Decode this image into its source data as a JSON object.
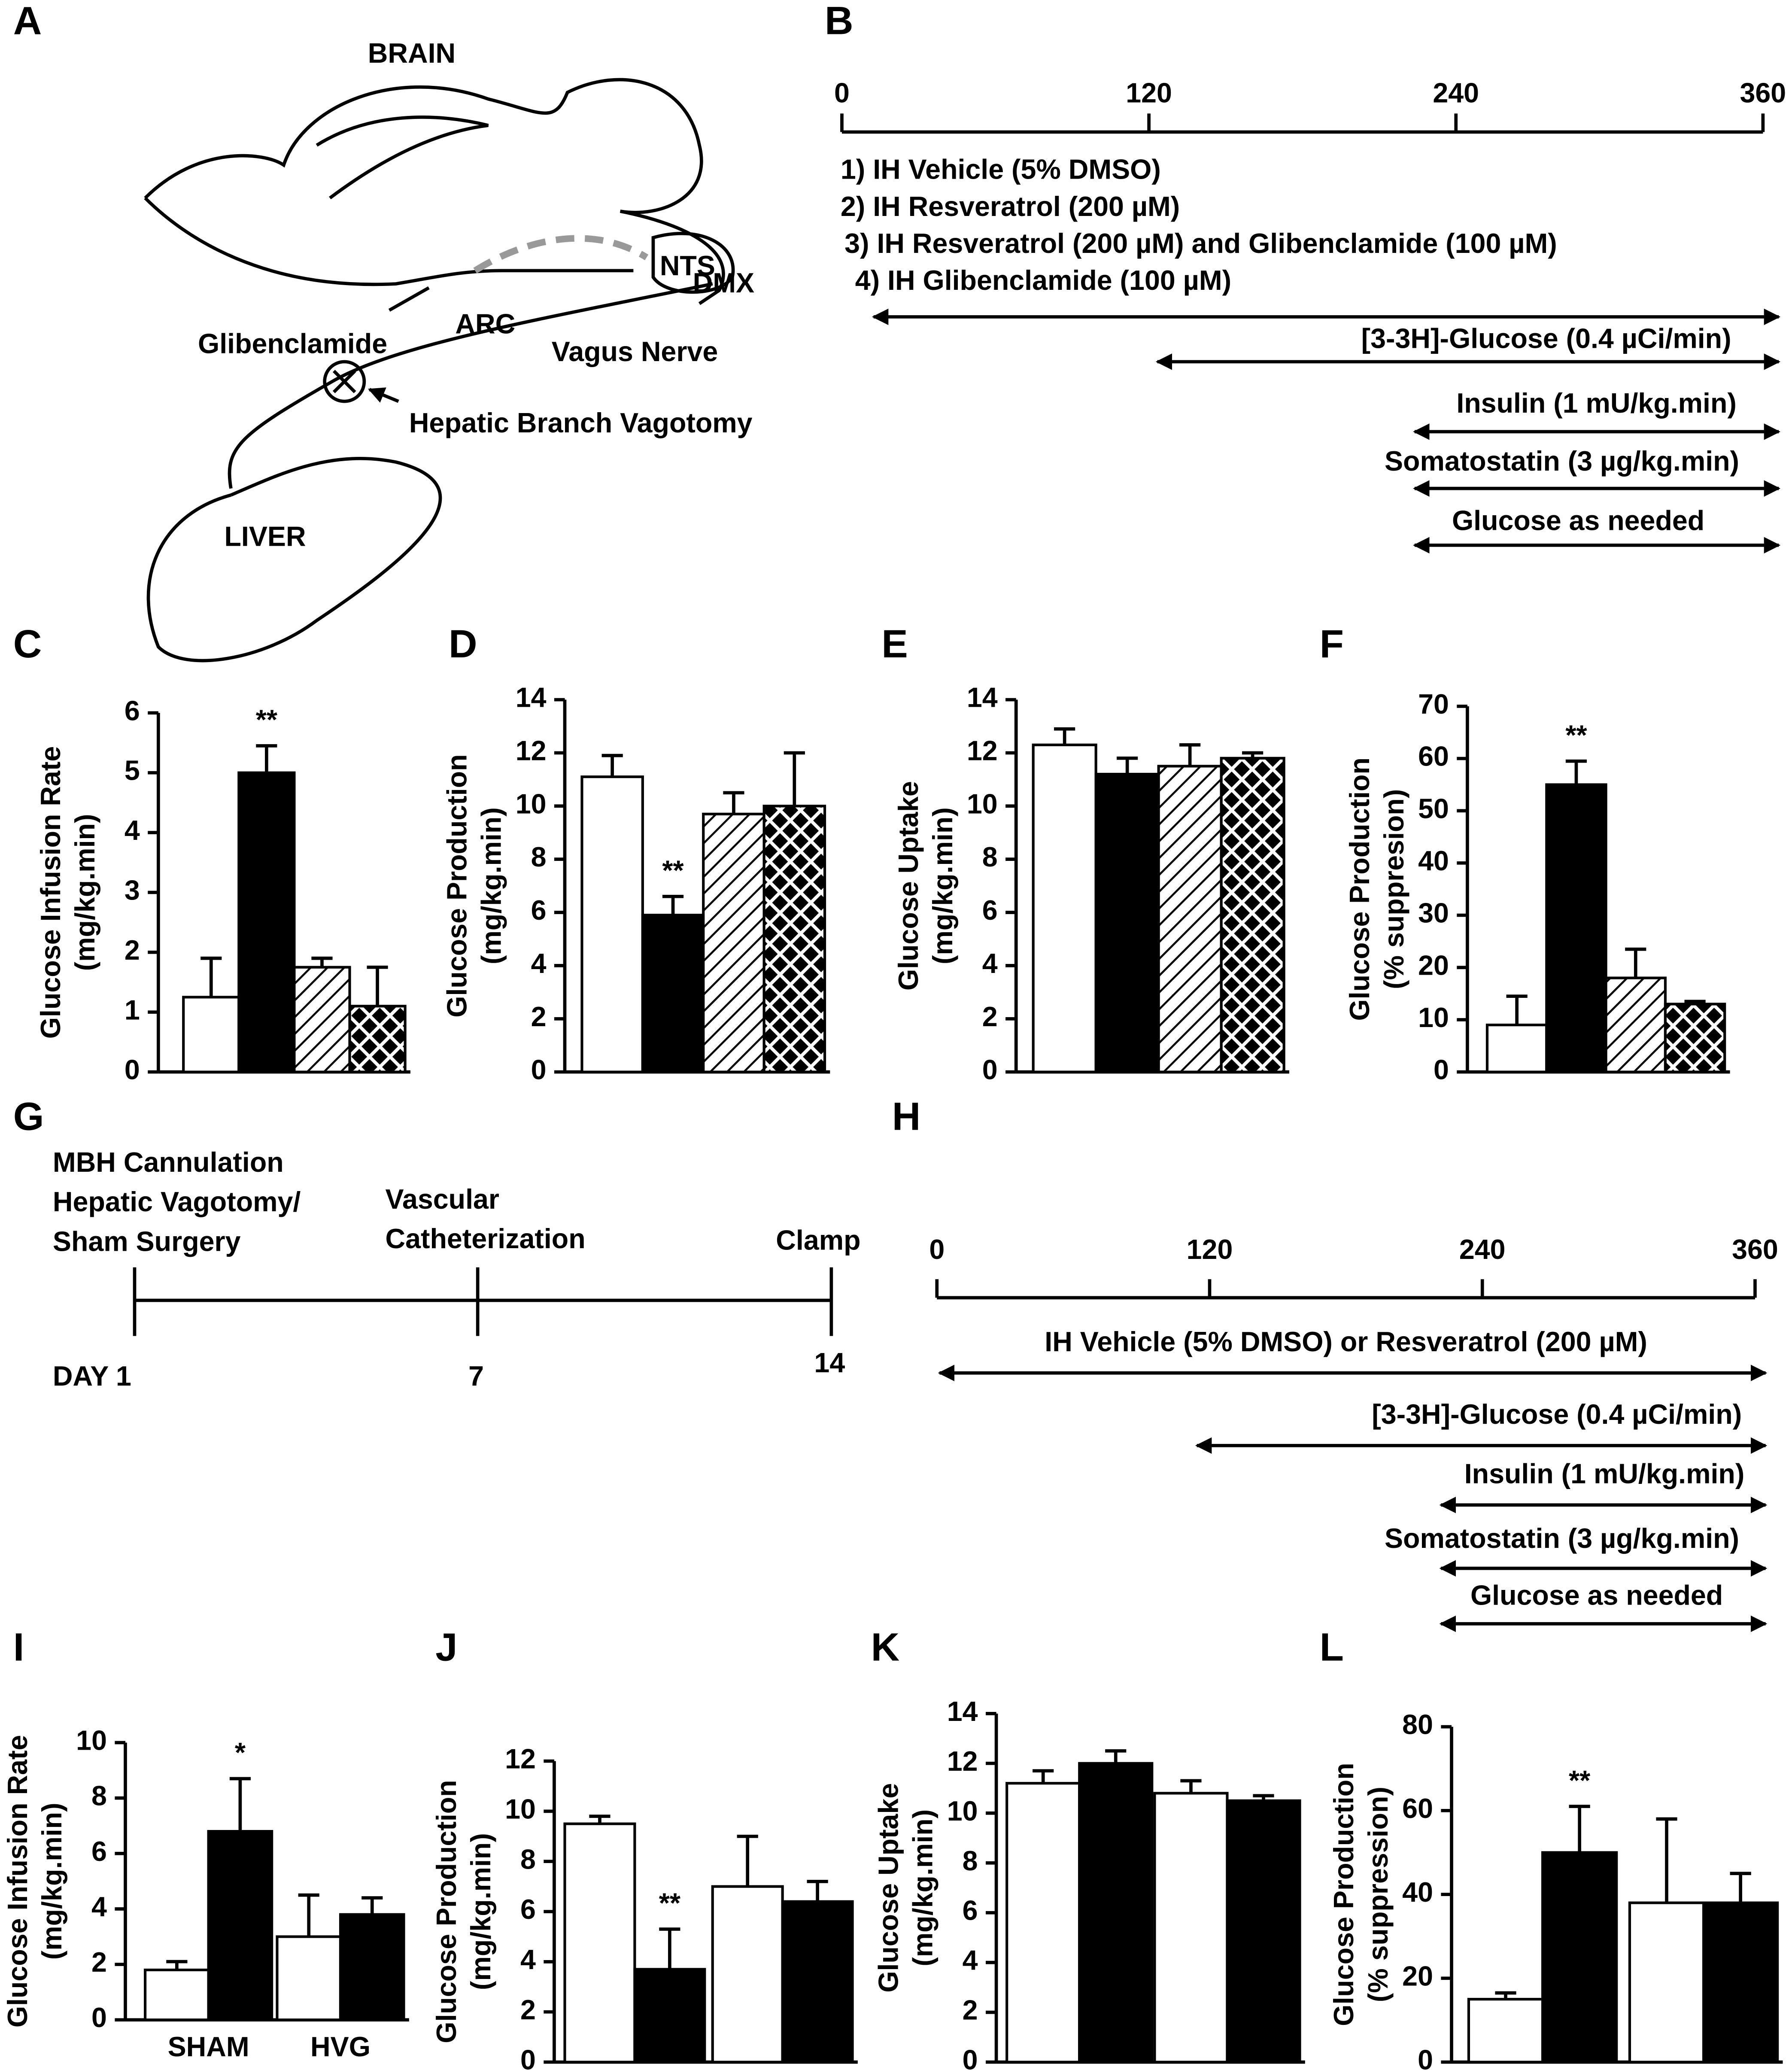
{
  "panel_a": {
    "label": "A",
    "brain": "BRAIN",
    "nts": "NTS",
    "dmx": "DMX",
    "arc": "ARC",
    "glibenclamide": "Glibenclamide",
    "vagus": "Vagus Nerve",
    "vagotomy": "Hepatic Branch Vagotomy",
    "liver": "LIVER"
  },
  "panel_b": {
    "label": "B",
    "ticks": [
      0,
      120,
      240,
      360
    ],
    "treatments": [
      "1) IH Vehicle (5% DMSO)",
      "2) IH Resveratrol (200 µM)",
      "3) IH Resveratrol (200 µM) and Glibenclamide (100 µM)",
      "4) IH Glibenclamide (100 µM)"
    ],
    "infusions": [
      "[3-3H]-Glucose (0.4 µCi/min)",
      "Insulin (1 mU/kg.min)",
      "Somatostatin (3 µg/kg.min)",
      "Glucose as needed"
    ]
  },
  "panel_g": {
    "label": "G",
    "events": [
      "MBH Cannulation",
      "Hepatic Vagotomy/",
      "Sham Surgery",
      "Vascular",
      "Catheterization",
      "Clamp"
    ],
    "days": [
      "DAY 1",
      "7",
      "14"
    ]
  },
  "panel_h": {
    "label": "H",
    "ticks": [
      0,
      120,
      240,
      360
    ],
    "treatment": "IH Vehicle (5% DMSO) or Resveratrol (200 µM)",
    "infusions": [
      "[3-3H]-Glucose (0.4 µCi/min)",
      "Insulin (1 mU/kg.min)",
      "Somatostatin (3 µg/kg.min)",
      "Glucose as needed"
    ]
  },
  "chart_data": [
    {
      "type": "bar",
      "panel": "C",
      "ylabel": [
        "Glucose Infusion Rate",
        "(mg/kg.min)"
      ],
      "categories": [
        null,
        null,
        null,
        null
      ],
      "values": [
        1.25,
        5.0,
        1.75,
        1.1
      ],
      "errors": [
        0.65,
        0.45,
        0.15,
        0.65
      ],
      "patterns": [
        "open",
        "solid",
        "hatch",
        "crosshatch"
      ],
      "significance": [
        null,
        "**",
        null,
        null
      ],
      "ylim": [
        0,
        6
      ],
      "yticks": [
        0,
        1,
        2,
        3,
        4,
        5,
        6
      ]
    },
    {
      "type": "bar",
      "panel": "D",
      "ylabel": [
        "Glucose Production",
        "(mg/kg.min)"
      ],
      "categories": [
        null,
        null,
        null,
        null
      ],
      "values": [
        11.1,
        5.9,
        9.7,
        10.0
      ],
      "errors": [
        0.8,
        0.7,
        0.8,
        2.0
      ],
      "patterns": [
        "open",
        "solid",
        "hatch",
        "crosshatch"
      ],
      "significance": [
        null,
        "**",
        null,
        null
      ],
      "ylim": [
        0,
        14
      ],
      "yticks": [
        0,
        2,
        4,
        6,
        8,
        10,
        12,
        14
      ]
    },
    {
      "type": "bar",
      "panel": "E",
      "ylabel": [
        "Glucose Uptake",
        "(mg/kg.min)"
      ],
      "categories": [
        null,
        null,
        null,
        null
      ],
      "values": [
        12.3,
        11.2,
        11.5,
        11.8
      ],
      "errors": [
        0.6,
        0.6,
        0.8,
        0.2
      ],
      "patterns": [
        "open",
        "solid",
        "hatch",
        "crosshatch"
      ],
      "significance": [
        null,
        null,
        null,
        null
      ],
      "ylim": [
        0,
        14
      ],
      "yticks": [
        0,
        2,
        4,
        6,
        8,
        10,
        12,
        14
      ]
    },
    {
      "type": "bar",
      "panel": "F",
      "ylabel": [
        "Glucose Production",
        "(% suppresion)"
      ],
      "categories": [
        null,
        null,
        null,
        null
      ],
      "values": [
        9,
        55,
        18,
        13
      ],
      "errors": [
        5.5,
        4.5,
        5.5,
        0.5
      ],
      "patterns": [
        "open",
        "solid",
        "hatch",
        "crosshatch"
      ],
      "significance": [
        null,
        "**",
        null,
        null
      ],
      "ylim": [
        0,
        70
      ],
      "yticks": [
        0,
        10,
        20,
        30,
        40,
        50,
        60,
        70
      ]
    },
    {
      "type": "grouped_bar",
      "panel": "I",
      "ylabel": [
        "Glucose Infusion Rate",
        "(mg/kg.min)"
      ],
      "categories": [
        "SHAM",
        "HVG"
      ],
      "series": [
        {
          "color": "#ffffff",
          "values": [
            1.8,
            3.0
          ],
          "errors": [
            0.3,
            1.5
          ],
          "significance": [
            null,
            null
          ]
        },
        {
          "color": "#000000",
          "values": [
            6.8,
            3.8
          ],
          "errors": [
            1.9,
            0.6
          ],
          "significance": [
            "*",
            null
          ]
        }
      ],
      "ylim": [
        0,
        10
      ],
      "yticks": [
        0,
        2,
        4,
        6,
        8,
        10
      ]
    },
    {
      "type": "grouped_bar",
      "panel": "J",
      "ylabel": [
        "Glucose Production",
        "(mg/kg.min)"
      ],
      "categories": [
        "SHAM",
        "HVG"
      ],
      "series": [
        {
          "color": "#ffffff",
          "values": [
            9.5,
            7.0
          ],
          "errors": [
            0.3,
            2.0
          ],
          "significance": [
            null,
            null
          ]
        },
        {
          "color": "#000000",
          "values": [
            3.7,
            6.4
          ],
          "errors": [
            1.6,
            0.8
          ],
          "significance": [
            "**",
            null
          ]
        }
      ],
      "ylim": [
        0,
        12
      ],
      "yticks": [
        0,
        2,
        4,
        6,
        8,
        10,
        12
      ]
    },
    {
      "type": "grouped_bar",
      "panel": "K",
      "ylabel": [
        "Glucose Uptake",
        "(mg/kg.min)"
      ],
      "categories": [
        "SHAM",
        "HVG"
      ],
      "series": [
        {
          "color": "#ffffff",
          "values": [
            11.2,
            10.8
          ],
          "errors": [
            0.5,
            0.5
          ],
          "significance": [
            null,
            null
          ]
        },
        {
          "color": "#000000",
          "values": [
            12.0,
            10.5
          ],
          "errors": [
            0.5,
            0.2
          ],
          "significance": [
            null,
            null
          ]
        }
      ],
      "ylim": [
        0,
        14
      ],
      "yticks": [
        0,
        2,
        4,
        6,
        8,
        10,
        12,
        14
      ]
    },
    {
      "type": "grouped_bar",
      "panel": "L",
      "ylabel": [
        "Glucose Production",
        "(% suppression)"
      ],
      "categories": [
        "SHAM",
        "HVG"
      ],
      "series": [
        {
          "color": "#ffffff",
          "values": [
            15,
            38
          ],
          "errors": [
            1.5,
            20
          ],
          "significance": [
            null,
            null
          ]
        },
        {
          "color": "#000000",
          "values": [
            50,
            38
          ],
          "errors": [
            11,
            7
          ],
          "significance": [
            "**",
            null
          ]
        }
      ],
      "ylim": [
        0,
        80
      ],
      "yticks": [
        0,
        20,
        40,
        60,
        80
      ]
    }
  ]
}
